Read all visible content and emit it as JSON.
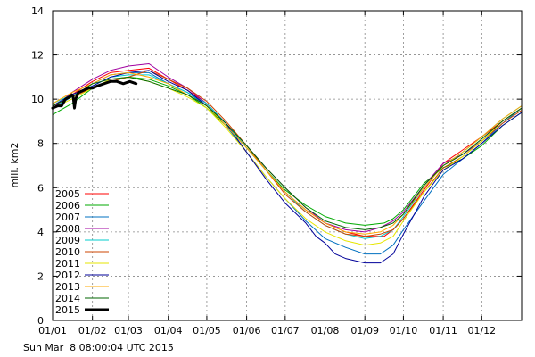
{
  "chart_data": {
    "type": "line",
    "title": "",
    "xlabel": "",
    "ylabel": "mill. km2",
    "xlim": [
      0,
      365
    ],
    "ylim": [
      0,
      14
    ],
    "grid": true,
    "legend_position": "bottom-left",
    "x_ticks": [
      {
        "day": 0,
        "label": "01/01"
      },
      {
        "day": 31,
        "label": "01/02"
      },
      {
        "day": 59,
        "label": "01/03"
      },
      {
        "day": 90,
        "label": "01/04"
      },
      {
        "day": 120,
        "label": "01/05"
      },
      {
        "day": 151,
        "label": "01/06"
      },
      {
        "day": 181,
        "label": "01/07"
      },
      {
        "day": 212,
        "label": "01/08"
      },
      {
        "day": 243,
        "label": "01/09"
      },
      {
        "day": 273,
        "label": "01/10"
      },
      {
        "day": 304,
        "label": "01/11"
      },
      {
        "day": 334,
        "label": "01/12"
      }
    ],
    "y_ticks": [
      0,
      2,
      4,
      6,
      8,
      10,
      12,
      14
    ],
    "series": [
      {
        "name": "2005",
        "color": "#ff0000",
        "width": 1,
        "points": [
          [
            0,
            9.7
          ],
          [
            15,
            10.2
          ],
          [
            31,
            10.8
          ],
          [
            45,
            11.2
          ],
          [
            59,
            11.3
          ],
          [
            75,
            11.4
          ],
          [
            90,
            10.9
          ],
          [
            105,
            10.4
          ],
          [
            120,
            9.8
          ],
          [
            135,
            8.9
          ],
          [
            151,
            7.8
          ],
          [
            166,
            6.8
          ],
          [
            181,
            5.8
          ],
          [
            197,
            5.0
          ],
          [
            212,
            4.4
          ],
          [
            228,
            4.0
          ],
          [
            243,
            3.8
          ],
          [
            258,
            3.8
          ],
          [
            265,
            4.1
          ],
          [
            273,
            4.6
          ],
          [
            289,
            5.9
          ],
          [
            304,
            7.1
          ],
          [
            319,
            7.7
          ],
          [
            334,
            8.3
          ],
          [
            350,
            9.0
          ],
          [
            365,
            9.6
          ]
        ]
      },
      {
        "name": "2006",
        "color": "#00aa00",
        "width": 1,
        "points": [
          [
            0,
            9.3
          ],
          [
            15,
            9.8
          ],
          [
            31,
            10.5
          ],
          [
            45,
            10.8
          ],
          [
            59,
            11.0
          ],
          [
            75,
            10.9
          ],
          [
            90,
            10.6
          ],
          [
            105,
            10.2
          ],
          [
            120,
            9.6
          ],
          [
            135,
            8.8
          ],
          [
            151,
            7.8
          ],
          [
            166,
            6.8
          ],
          [
            181,
            5.9
          ],
          [
            197,
            5.2
          ],
          [
            212,
            4.7
          ],
          [
            228,
            4.4
          ],
          [
            243,
            4.3
          ],
          [
            258,
            4.4
          ],
          [
            265,
            4.6
          ],
          [
            273,
            5.0
          ],
          [
            289,
            6.2
          ],
          [
            304,
            6.9
          ],
          [
            319,
            7.3
          ],
          [
            334,
            7.9
          ],
          [
            350,
            8.8
          ],
          [
            365,
            9.4
          ]
        ]
      },
      {
        "name": "2007",
        "color": "#0070c0",
        "width": 1,
        "points": [
          [
            0,
            9.6
          ],
          [
            15,
            10.1
          ],
          [
            31,
            10.7
          ],
          [
            45,
            11.1
          ],
          [
            59,
            11.2
          ],
          [
            75,
            11.2
          ],
          [
            90,
            10.7
          ],
          [
            105,
            10.3
          ],
          [
            120,
            9.7
          ],
          [
            135,
            8.8
          ],
          [
            151,
            7.6
          ],
          [
            166,
            6.5
          ],
          [
            181,
            5.5
          ],
          [
            197,
            4.5
          ],
          [
            212,
            3.7
          ],
          [
            228,
            3.3
          ],
          [
            243,
            3.0
          ],
          [
            255,
            3.0
          ],
          [
            265,
            3.4
          ],
          [
            273,
            4.1
          ],
          [
            289,
            5.4
          ],
          [
            304,
            6.6
          ],
          [
            319,
            7.3
          ],
          [
            334,
            8.0
          ],
          [
            350,
            8.9
          ],
          [
            365,
            9.6
          ]
        ]
      },
      {
        "name": "2008",
        "color": "#a000a0",
        "width": 1,
        "points": [
          [
            0,
            9.6
          ],
          [
            15,
            10.3
          ],
          [
            31,
            10.9
          ],
          [
            45,
            11.3
          ],
          [
            59,
            11.5
          ],
          [
            75,
            11.6
          ],
          [
            90,
            11.0
          ],
          [
            105,
            10.5
          ],
          [
            120,
            9.8
          ],
          [
            135,
            8.9
          ],
          [
            151,
            7.9
          ],
          [
            166,
            6.9
          ],
          [
            181,
            6.0
          ],
          [
            197,
            5.1
          ],
          [
            212,
            4.4
          ],
          [
            228,
            4.1
          ],
          [
            243,
            4.0
          ],
          [
            255,
            4.2
          ],
          [
            265,
            4.5
          ],
          [
            273,
            4.9
          ],
          [
            289,
            6.1
          ],
          [
            304,
            7.1
          ],
          [
            319,
            7.5
          ],
          [
            334,
            8.1
          ],
          [
            350,
            9.0
          ],
          [
            365,
            9.6
          ]
        ]
      },
      {
        "name": "2009",
        "color": "#00cccc",
        "width": 1,
        "points": [
          [
            0,
            9.8
          ],
          [
            15,
            10.2
          ],
          [
            31,
            10.6
          ],
          [
            45,
            11.0
          ],
          [
            59,
            11.1
          ],
          [
            75,
            11.1
          ],
          [
            90,
            10.7
          ],
          [
            105,
            10.3
          ],
          [
            120,
            9.8
          ],
          [
            135,
            8.9
          ],
          [
            151,
            7.8
          ],
          [
            166,
            6.8
          ],
          [
            181,
            5.8
          ],
          [
            197,
            4.9
          ],
          [
            212,
            4.3
          ],
          [
            228,
            3.9
          ],
          [
            243,
            3.7
          ],
          [
            255,
            3.8
          ],
          [
            265,
            4.1
          ],
          [
            273,
            4.7
          ],
          [
            289,
            6.0
          ],
          [
            304,
            7.0
          ],
          [
            319,
            7.6
          ],
          [
            334,
            8.3
          ],
          [
            350,
            9.1
          ],
          [
            365,
            9.7
          ]
        ]
      },
      {
        "name": "2010",
        "color": "#cc4400",
        "width": 1,
        "points": [
          [
            0,
            9.7
          ],
          [
            15,
            10.1
          ],
          [
            31,
            10.5
          ],
          [
            45,
            10.8
          ],
          [
            59,
            11.0
          ],
          [
            75,
            11.3
          ],
          [
            90,
            10.9
          ],
          [
            105,
            10.5
          ],
          [
            120,
            9.9
          ],
          [
            135,
            9.0
          ],
          [
            151,
            7.9
          ],
          [
            166,
            6.8
          ],
          [
            181,
            5.7
          ],
          [
            197,
            4.9
          ],
          [
            212,
            4.3
          ],
          [
            228,
            3.9
          ],
          [
            243,
            3.8
          ],
          [
            255,
            3.9
          ],
          [
            265,
            4.1
          ],
          [
            273,
            4.6
          ],
          [
            289,
            5.8
          ],
          [
            304,
            6.9
          ],
          [
            319,
            7.4
          ],
          [
            334,
            8.1
          ],
          [
            350,
            8.9
          ],
          [
            365,
            9.5
          ]
        ]
      },
      {
        "name": "2011",
        "color": "#e6e600",
        "width": 1,
        "points": [
          [
            0,
            9.6
          ],
          [
            15,
            10.0
          ],
          [
            31,
            10.5
          ],
          [
            45,
            10.9
          ],
          [
            59,
            11.0
          ],
          [
            75,
            10.8
          ],
          [
            90,
            10.5
          ],
          [
            105,
            10.1
          ],
          [
            120,
            9.6
          ],
          [
            135,
            8.7
          ],
          [
            151,
            7.6
          ],
          [
            166,
            6.5
          ],
          [
            181,
            5.5
          ],
          [
            197,
            4.6
          ],
          [
            212,
            4.0
          ],
          [
            228,
            3.6
          ],
          [
            243,
            3.4
          ],
          [
            255,
            3.5
          ],
          [
            265,
            3.8
          ],
          [
            273,
            4.5
          ],
          [
            289,
            5.8
          ],
          [
            304,
            6.8
          ],
          [
            319,
            7.4
          ],
          [
            334,
            8.1
          ],
          [
            350,
            9.0
          ],
          [
            365,
            9.6
          ]
        ]
      },
      {
        "name": "2012",
        "color": "#000099",
        "width": 1,
        "points": [
          [
            0,
            9.7
          ],
          [
            15,
            10.2
          ],
          [
            31,
            10.6
          ],
          [
            45,
            11.0
          ],
          [
            59,
            11.2
          ],
          [
            75,
            11.3
          ],
          [
            90,
            10.8
          ],
          [
            105,
            10.4
          ],
          [
            120,
            9.7
          ],
          [
            135,
            8.9
          ],
          [
            151,
            7.6
          ],
          [
            166,
            6.4
          ],
          [
            181,
            5.3
          ],
          [
            197,
            4.4
          ],
          [
            205,
            3.8
          ],
          [
            212,
            3.5
          ],
          [
            220,
            3.0
          ],
          [
            228,
            2.8
          ],
          [
            243,
            2.6
          ],
          [
            255,
            2.6
          ],
          [
            265,
            3.0
          ],
          [
            273,
            3.9
          ],
          [
            289,
            5.6
          ],
          [
            304,
            6.8
          ],
          [
            319,
            7.3
          ],
          [
            334,
            8.0
          ],
          [
            350,
            8.8
          ],
          [
            365,
            9.4
          ]
        ]
      },
      {
        "name": "2013",
        "color": "#ffaa00",
        "width": 1,
        "points": [
          [
            0,
            9.8
          ],
          [
            15,
            10.3
          ],
          [
            31,
            10.7
          ],
          [
            45,
            11.1
          ],
          [
            59,
            11.2
          ],
          [
            75,
            11.0
          ],
          [
            90,
            10.7
          ],
          [
            105,
            10.2
          ],
          [
            120,
            9.7
          ],
          [
            135,
            8.8
          ],
          [
            151,
            7.8
          ],
          [
            166,
            6.8
          ],
          [
            181,
            5.8
          ],
          [
            197,
            5.0
          ],
          [
            212,
            4.4
          ],
          [
            228,
            4.0
          ],
          [
            243,
            3.9
          ],
          [
            255,
            4.0
          ],
          [
            265,
            4.3
          ],
          [
            273,
            4.8
          ],
          [
            289,
            6.0
          ],
          [
            304,
            7.0
          ],
          [
            319,
            7.6
          ],
          [
            334,
            8.3
          ],
          [
            350,
            9.1
          ],
          [
            365,
            9.7
          ]
        ]
      },
      {
        "name": "2014",
        "color": "#006600",
        "width": 1,
        "points": [
          [
            0,
            9.7
          ],
          [
            15,
            10.1
          ],
          [
            31,
            10.7
          ],
          [
            45,
            10.9
          ],
          [
            59,
            11.0
          ],
          [
            75,
            10.8
          ],
          [
            90,
            10.5
          ],
          [
            105,
            10.2
          ],
          [
            120,
            9.7
          ],
          [
            135,
            8.9
          ],
          [
            151,
            7.9
          ],
          [
            166,
            6.9
          ],
          [
            181,
            6.0
          ],
          [
            197,
            5.1
          ],
          [
            212,
            4.5
          ],
          [
            228,
            4.2
          ],
          [
            243,
            4.1
          ],
          [
            255,
            4.2
          ],
          [
            265,
            4.4
          ],
          [
            273,
            4.8
          ],
          [
            289,
            6.1
          ],
          [
            304,
            7.0
          ],
          [
            319,
            7.5
          ],
          [
            334,
            8.2
          ],
          [
            350,
            9.0
          ],
          [
            365,
            9.6
          ]
        ]
      },
      {
        "name": "2015",
        "color": "#000000",
        "width": 3,
        "points": [
          [
            0,
            9.6
          ],
          [
            4,
            9.7
          ],
          [
            7,
            9.7
          ],
          [
            10,
            10.0
          ],
          [
            13,
            10.1
          ],
          [
            15,
            10.2
          ],
          [
            16,
            10.1
          ],
          [
            17,
            9.6
          ],
          [
            18,
            10.0
          ],
          [
            20,
            10.3
          ],
          [
            24,
            10.4
          ],
          [
            28,
            10.5
          ],
          [
            31,
            10.5
          ],
          [
            35,
            10.6
          ],
          [
            40,
            10.7
          ],
          [
            45,
            10.8
          ],
          [
            50,
            10.8
          ],
          [
            55,
            10.7
          ],
          [
            60,
            10.8
          ],
          [
            65,
            10.7
          ]
        ]
      }
    ]
  },
  "footer": {
    "timestamp": "Sun Mar  8 08:00:04 UTC 2015"
  }
}
